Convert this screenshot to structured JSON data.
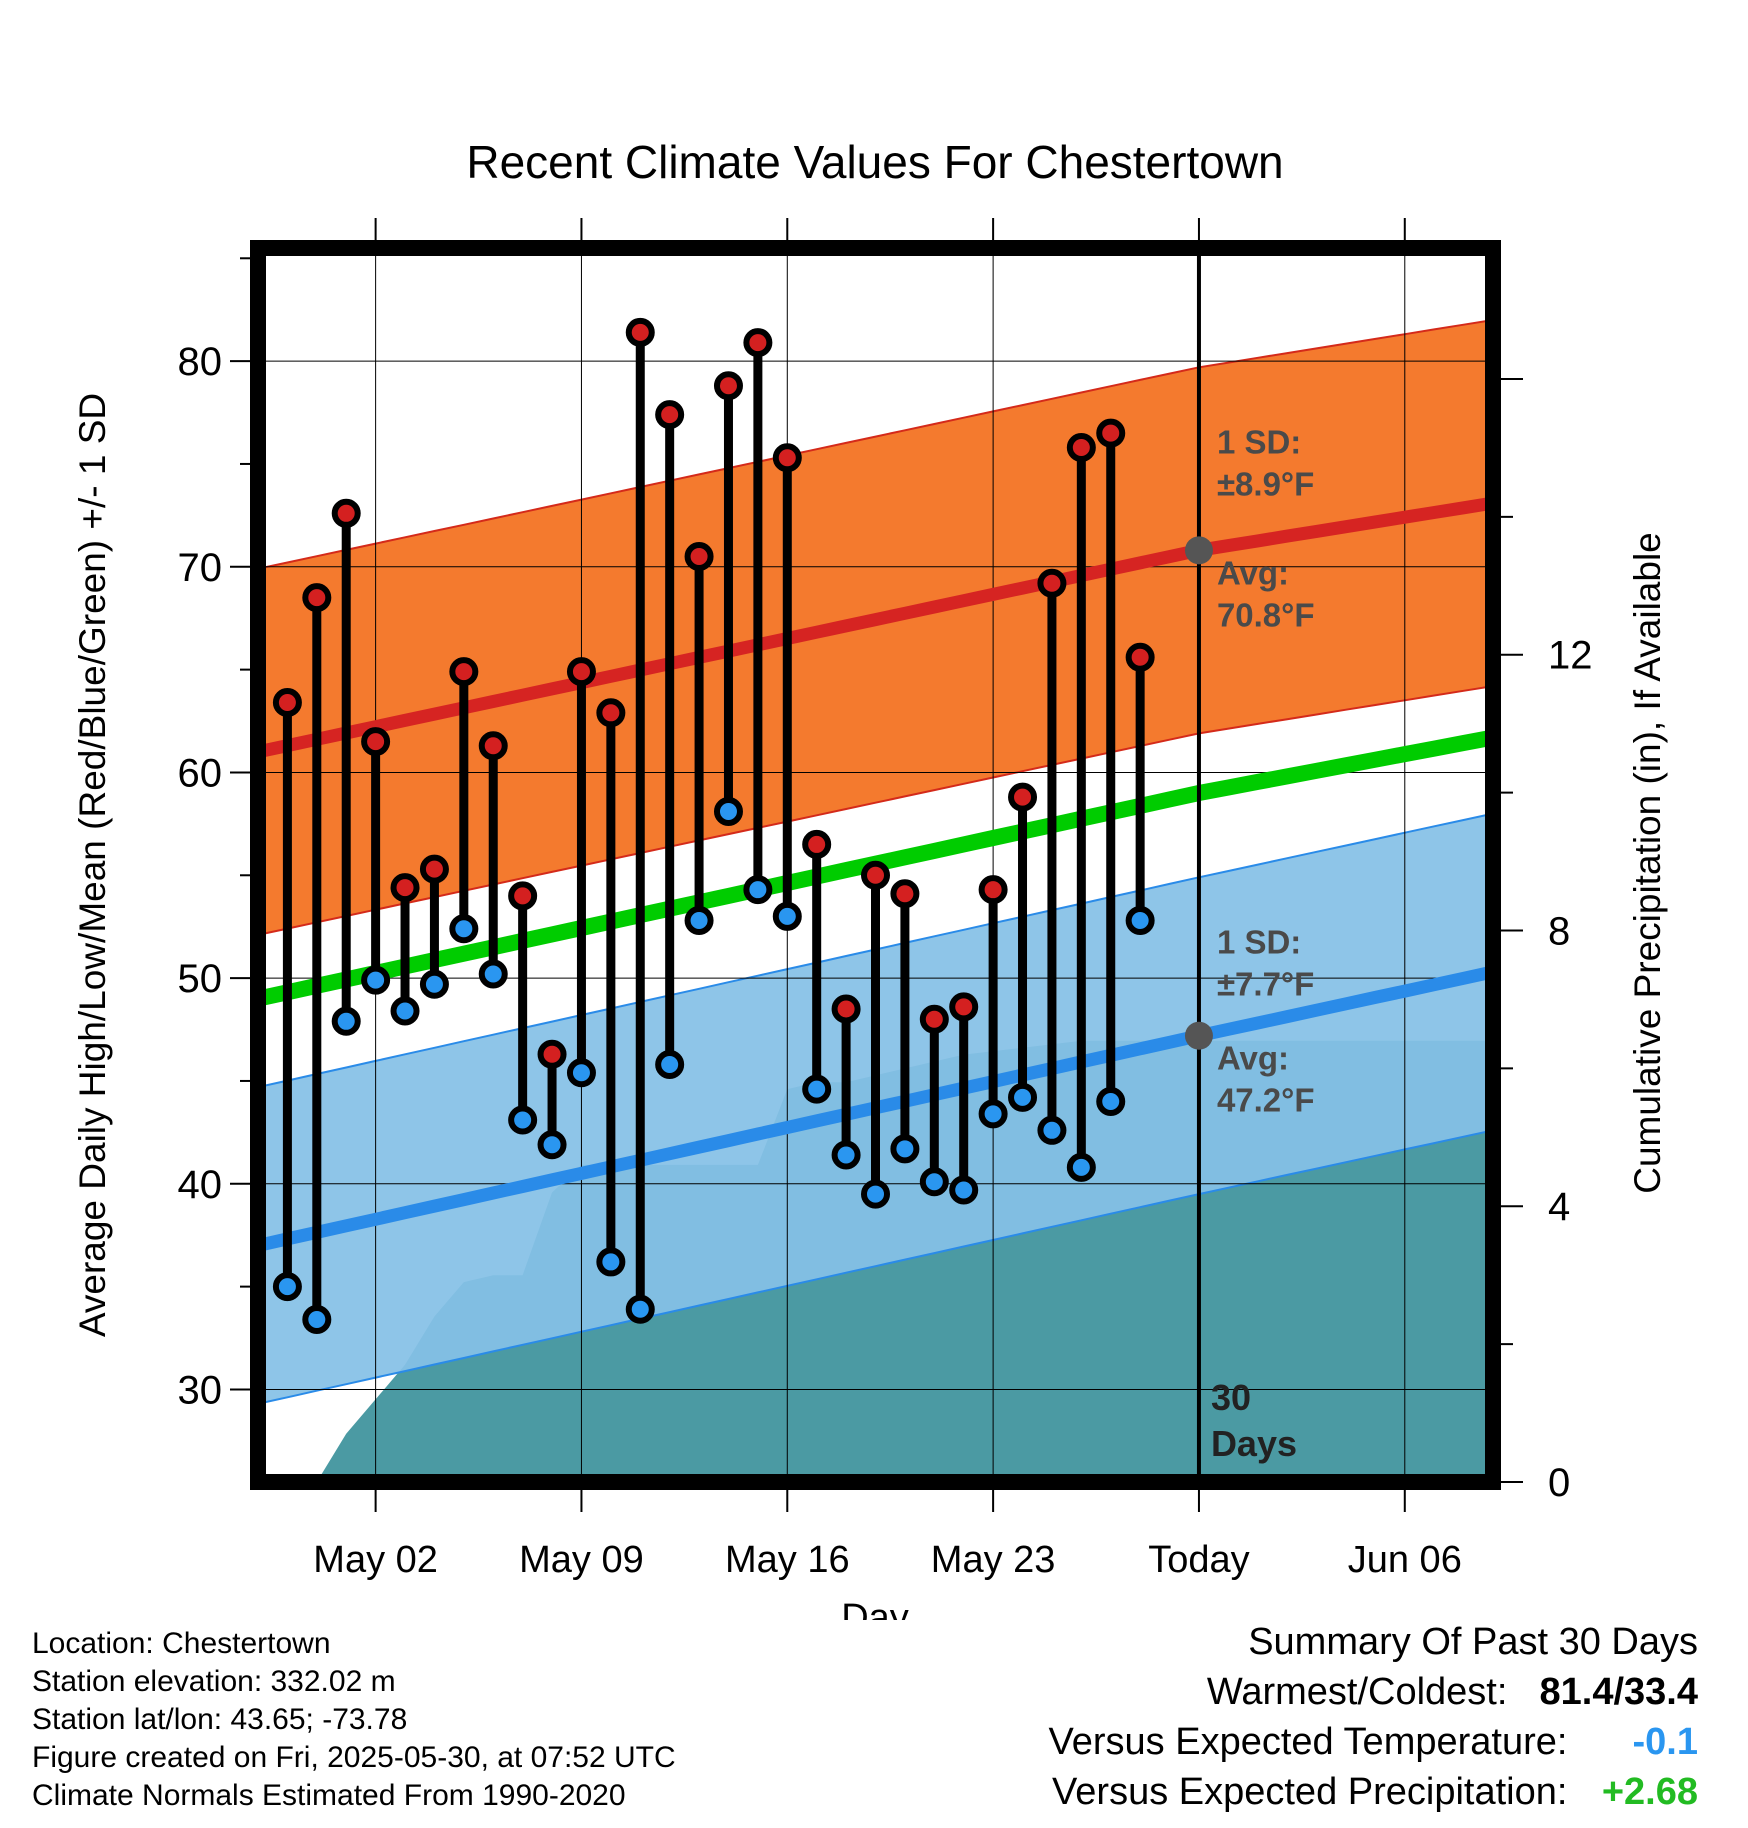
{
  "chart_data": {
    "type": "line",
    "title": "Recent Climate Values For Chestertown",
    "xlabel": "Day",
    "ylabel": "Average Daily High/Low/Mean (Red/Blue/Green) +/- 1 SD",
    "y2label": "Cumulative Precipitation (in), If Available",
    "ylim": [
      25.5,
      85.5
    ],
    "y_ticks": [
      30,
      40,
      50,
      60,
      70,
      80
    ],
    "y2lim": [
      0,
      17.9
    ],
    "y2_ticks": [
      0,
      4,
      8,
      12
    ],
    "xlim": [
      "2025-04-28",
      "2025-06-09"
    ],
    "x_ticks": [
      {
        "date": "2025-05-02",
        "label": "May 02"
      },
      {
        "date": "2025-05-09",
        "label": "May 09"
      },
      {
        "date": "2025-05-16",
        "label": "May 16"
      },
      {
        "date": "2025-05-23",
        "label": "May 23"
      },
      {
        "date": "2025-05-30",
        "label": "Today"
      },
      {
        "date": "2025-06-06",
        "label": "Jun 06"
      }
    ],
    "grid": true,
    "today": "2025-05-30",
    "today_marker_label": "30\nDays",
    "daily": [
      {
        "date": "2025-04-29",
        "high": 63.4,
        "low": 35.0
      },
      {
        "date": "2025-04-30",
        "high": 68.5,
        "low": 33.4
      },
      {
        "date": "2025-05-01",
        "high": 72.6,
        "low": 47.9
      },
      {
        "date": "2025-05-02",
        "high": 61.5,
        "low": 49.9
      },
      {
        "date": "2025-05-03",
        "high": 54.4,
        "low": 48.4
      },
      {
        "date": "2025-05-04",
        "high": 55.3,
        "low": 49.7
      },
      {
        "date": "2025-05-05",
        "high": 64.9,
        "low": 52.4
      },
      {
        "date": "2025-05-06",
        "high": 61.3,
        "low": 50.2
      },
      {
        "date": "2025-05-07",
        "high": 54.0,
        "low": 43.1
      },
      {
        "date": "2025-05-08",
        "high": 46.3,
        "low": 41.9
      },
      {
        "date": "2025-05-09",
        "high": 64.9,
        "low": 45.4
      },
      {
        "date": "2025-05-10",
        "high": 62.9,
        "low": 36.2
      },
      {
        "date": "2025-05-11",
        "high": 81.4,
        "low": 33.9
      },
      {
        "date": "2025-05-12",
        "high": 77.4,
        "low": 45.8
      },
      {
        "date": "2025-05-13",
        "high": 70.5,
        "low": 52.8
      },
      {
        "date": "2025-05-14",
        "high": 78.8,
        "low": 58.1
      },
      {
        "date": "2025-05-15",
        "high": 80.9,
        "low": 54.3
      },
      {
        "date": "2025-05-16",
        "high": 75.3,
        "low": 53.0
      },
      {
        "date": "2025-05-17",
        "high": 56.5,
        "low": 44.6
      },
      {
        "date": "2025-05-18",
        "high": 48.5,
        "low": 41.4
      },
      {
        "date": "2025-05-19",
        "high": 55.0,
        "low": 39.5
      },
      {
        "date": "2025-05-20",
        "high": 54.1,
        "low": 41.7
      },
      {
        "date": "2025-05-21",
        "high": 48.0,
        "low": 40.1
      },
      {
        "date": "2025-05-22",
        "high": 48.6,
        "low": 39.7
      },
      {
        "date": "2025-05-23",
        "high": 54.3,
        "low": 43.4
      },
      {
        "date": "2025-05-24",
        "high": 58.8,
        "low": 44.2
      },
      {
        "date": "2025-05-25",
        "high": 69.2,
        "low": 42.6
      },
      {
        "date": "2025-05-26",
        "high": 75.8,
        "low": 40.8
      },
      {
        "date": "2025-05-27",
        "high": 76.5,
        "low": 44.0
      },
      {
        "date": "2025-05-28",
        "high": 65.6,
        "low": 52.8
      }
    ],
    "normals": {
      "dates": [
        "2025-04-28",
        "2025-05-30",
        "2025-06-09"
      ],
      "high_avg": [
        61.0,
        70.8,
        73.1
      ],
      "high_sd": 8.9,
      "low_avg": [
        37.0,
        47.2,
        50.3
      ],
      "low_sd": 7.7,
      "mean_avg": [
        49.0,
        59.0,
        61.7
      ]
    },
    "precipitation": [
      {
        "date": "2025-04-30",
        "value": 0.0
      },
      {
        "date": "2025-05-01",
        "value": 0.7
      },
      {
        "date": "2025-05-02",
        "value": 1.2
      },
      {
        "date": "2025-05-03",
        "value": 1.7
      },
      {
        "date": "2025-05-04",
        "value": 2.4
      },
      {
        "date": "2025-05-05",
        "value": 2.9
      },
      {
        "date": "2025-05-06",
        "value": 3.0
      },
      {
        "date": "2025-05-07",
        "value": 3.0
      },
      {
        "date": "2025-05-08",
        "value": 4.2
      },
      {
        "date": "2025-05-09",
        "value": 4.6
      },
      {
        "date": "2025-05-15",
        "value": 4.6
      },
      {
        "date": "2025-05-16",
        "value": 5.7
      },
      {
        "date": "2025-05-17",
        "value": 5.8
      },
      {
        "date": "2025-05-18",
        "value": 5.8
      },
      {
        "date": "2025-05-20",
        "value": 6.0
      },
      {
        "date": "2025-05-22",
        "value": 6.2
      },
      {
        "date": "2025-05-24",
        "value": 6.3
      },
      {
        "date": "2025-05-26",
        "value": 6.4
      },
      {
        "date": "2025-06-09",
        "value": 6.4
      }
    ],
    "annotations": [
      {
        "id": "high_sd",
        "lines": [
          "1 SD:",
          "±8.9°F"
        ]
      },
      {
        "id": "high_avg",
        "lines": [
          "Avg:",
          "70.8°F"
        ]
      },
      {
        "id": "low_sd",
        "lines": [
          "1 SD:",
          "±7.7°F"
        ]
      },
      {
        "id": "low_avg",
        "lines": [
          "Avg:",
          "47.2°F"
        ]
      }
    ],
    "colors": {
      "high_band": "#f47a2e",
      "high_band_edge": "#d42a1a",
      "high_avg_line": "#d62422",
      "low_band": "#85c1e6",
      "low_band_edge": "#2a8be8",
      "low_avg_line": "#2a8be8",
      "mean_line": "#00cc00",
      "precip_fill": "#4b9aa3",
      "high_dot": "#d42020",
      "low_dot": "#2a96f0",
      "annotation": "#4a4a4a"
    }
  },
  "info": {
    "location": "Location: Chestertown",
    "elevation": "Station elevation: 332.02 m",
    "latlon": "Station lat/lon: 43.65; -73.78",
    "created": "Figure created on Fri, 2025-05-30, at 07:52 UTC",
    "normals": "Climate Normals Estimated From 1990-2020"
  },
  "summary": {
    "title": "Summary Of Past 30 Days",
    "warmest_label": "Warmest/Coldest:",
    "warmest_value": "81.4/33.4",
    "temp_label": "Versus Expected Temperature:",
    "temp_value": "-0.1",
    "temp_color": "#2a96f0",
    "precip_label": "Versus Expected Precipitation:",
    "precip_value": "+2.68",
    "precip_color": "#22bb22"
  }
}
